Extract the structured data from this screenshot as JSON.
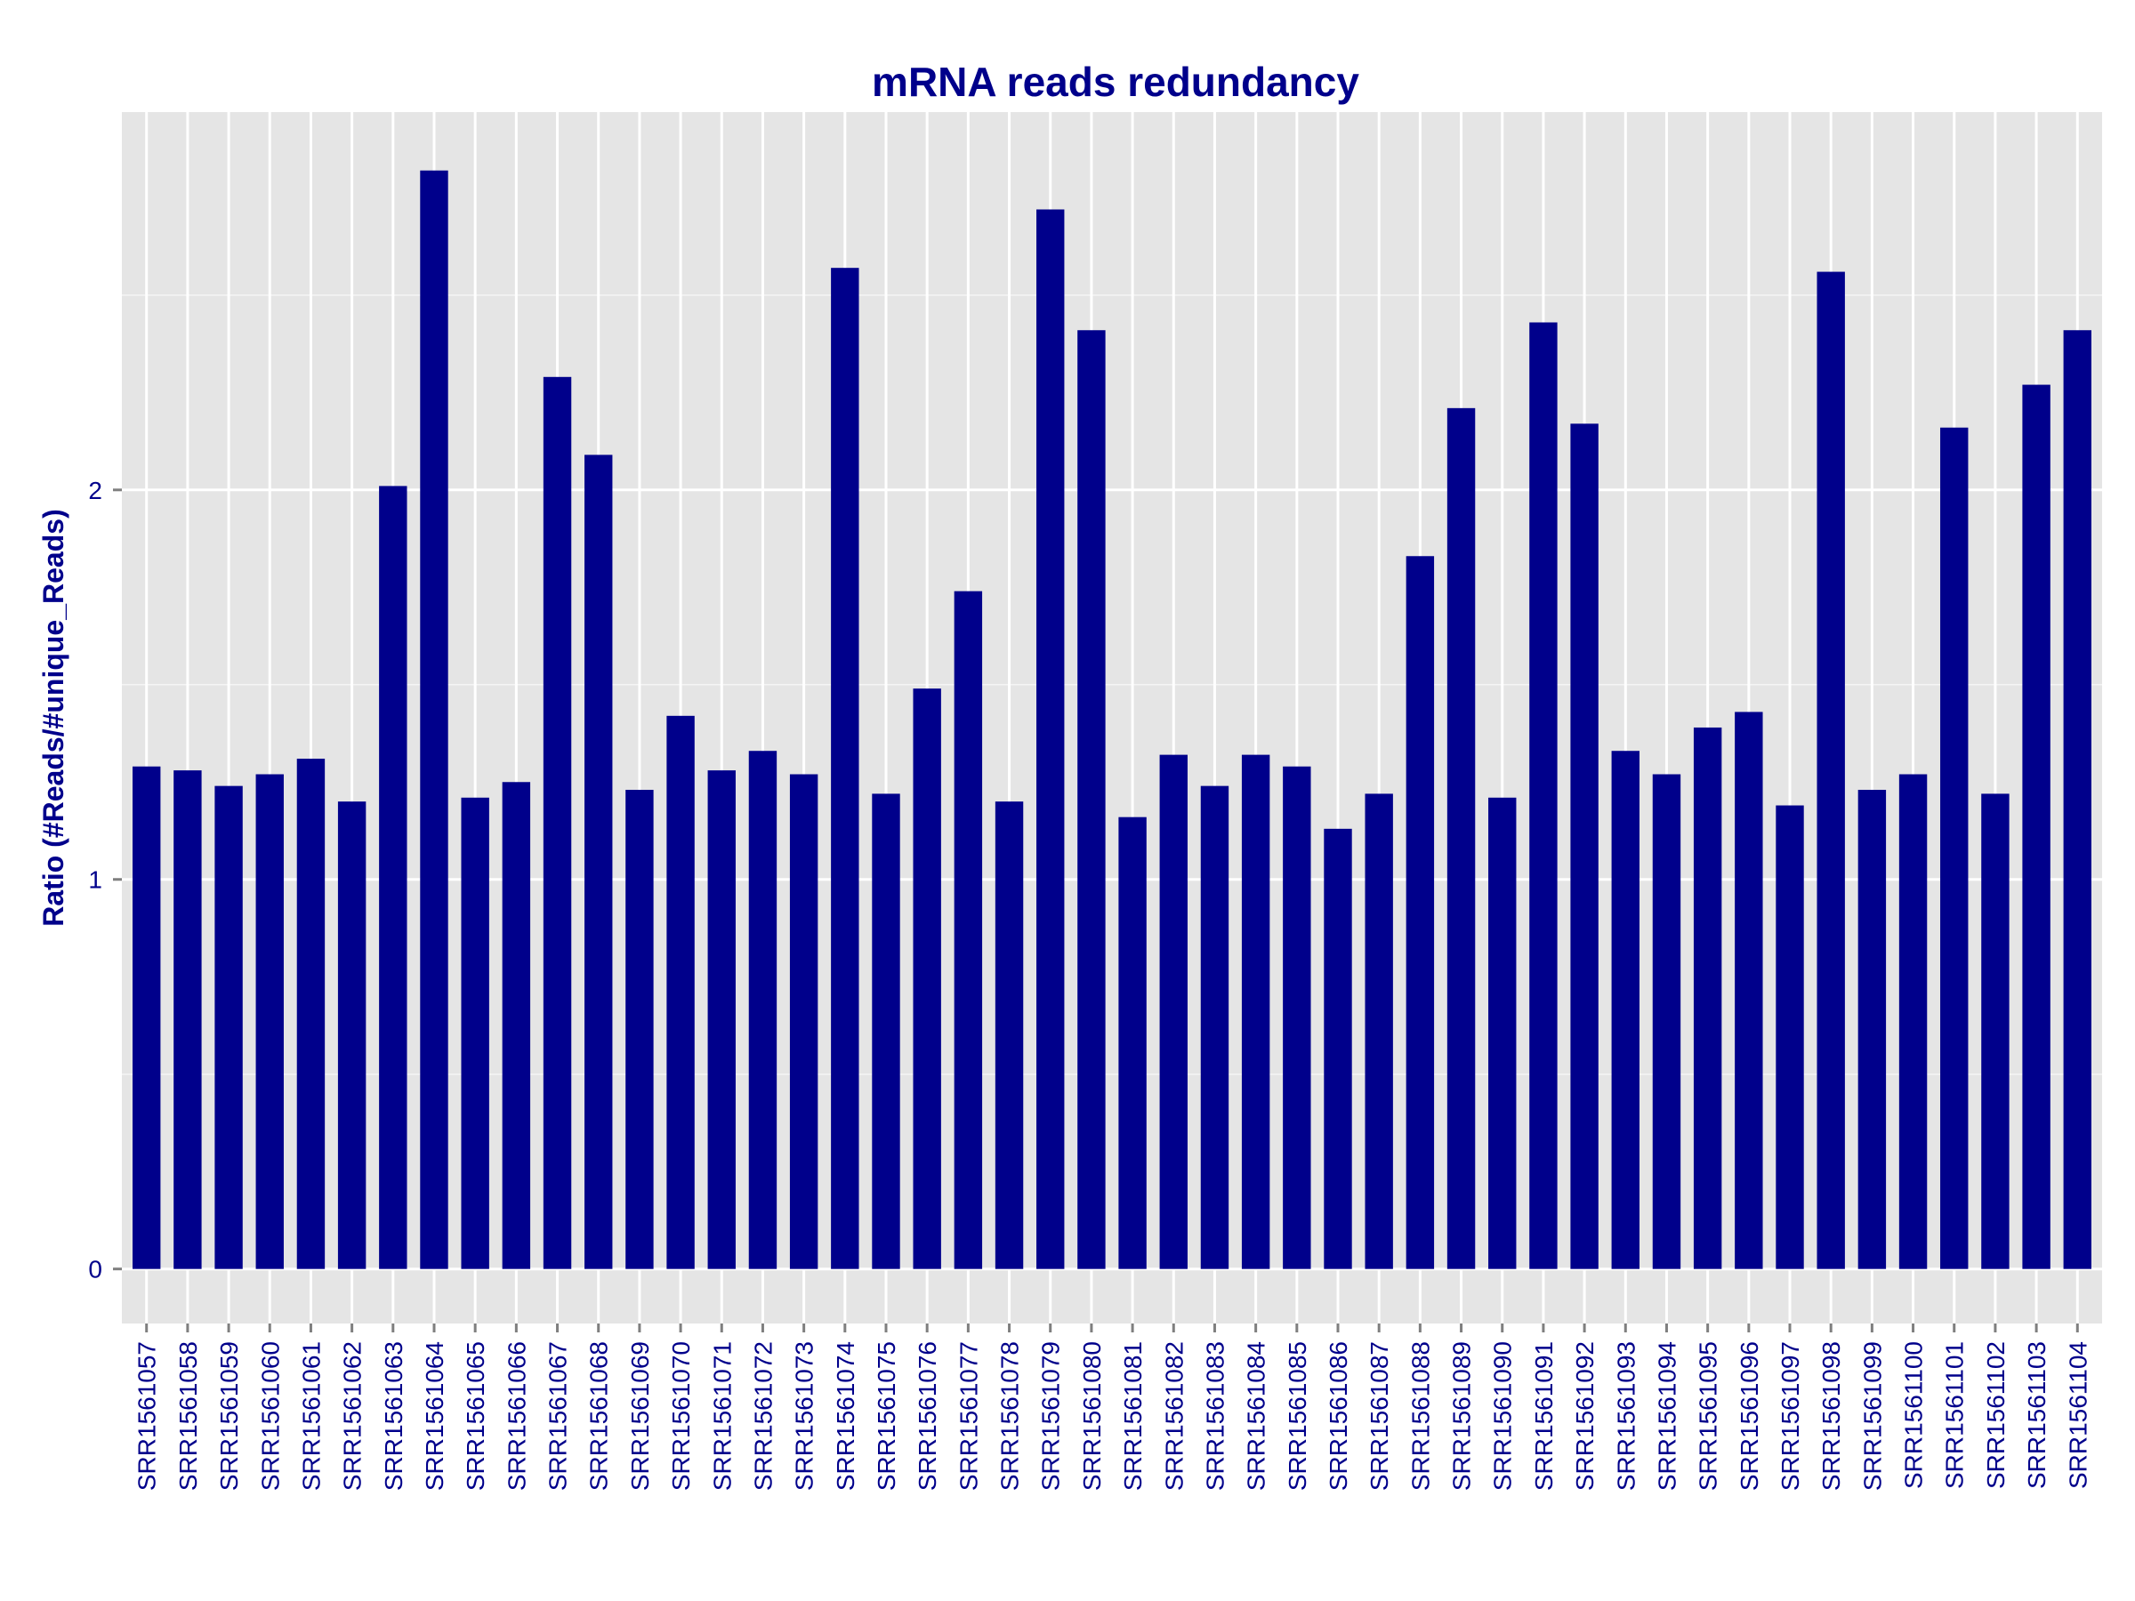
{
  "chart_data": {
    "type": "bar",
    "title": "mRNA reads redundancy",
    "xlabel": "",
    "ylabel": "Ratio (#Reads/#unique_Reads)",
    "ylim": [
      -0.14,
      2.97
    ],
    "yticks": [
      0,
      1,
      2
    ],
    "grid": true,
    "legend": "none",
    "colors": {
      "bar": "#00008B",
      "panel": "#E5E5E5",
      "grid": "#FFFFFF",
      "text": "#00008B"
    },
    "categories": [
      "SRR1561057",
      "SRR1561058",
      "SRR1561059",
      "SRR1561060",
      "SRR1561061",
      "SRR1561062",
      "SRR1561063",
      "SRR1561064",
      "SRR1561065",
      "SRR1561066",
      "SRR1561067",
      "SRR1561068",
      "SRR1561069",
      "SRR1561070",
      "SRR1561071",
      "SRR1561072",
      "SRR1561073",
      "SRR1561074",
      "SRR1561075",
      "SRR1561076",
      "SRR1561077",
      "SRR1561078",
      "SRR1561079",
      "SRR1561080",
      "SRR1561081",
      "SRR1561082",
      "SRR1561083",
      "SRR1561084",
      "SRR1561085",
      "SRR1561086",
      "SRR1561087",
      "SRR1561088",
      "SRR1561089",
      "SRR1561090",
      "SRR1561091",
      "SRR1561092",
      "SRR1561093",
      "SRR1561094",
      "SRR1561095",
      "SRR1561096",
      "SRR1561097",
      "SRR1561098",
      "SRR1561099",
      "SRR1561100",
      "SRR1561101",
      "SRR1561102",
      "SRR1561103",
      "SRR1561104"
    ],
    "values": [
      1.29,
      1.28,
      1.24,
      1.27,
      1.31,
      1.2,
      2.01,
      2.82,
      1.21,
      1.25,
      2.29,
      2.09,
      1.23,
      1.42,
      1.28,
      1.33,
      1.27,
      2.57,
      1.22,
      1.49,
      1.74,
      1.2,
      2.72,
      2.41,
      1.16,
      1.32,
      1.24,
      1.32,
      1.29,
      1.13,
      1.22,
      1.83,
      2.21,
      1.21,
      2.43,
      2.17,
      1.33,
      1.27,
      1.39,
      1.43,
      1.19,
      2.56,
      1.23,
      1.27,
      2.16,
      1.22,
      2.27,
      2.41
    ]
  }
}
